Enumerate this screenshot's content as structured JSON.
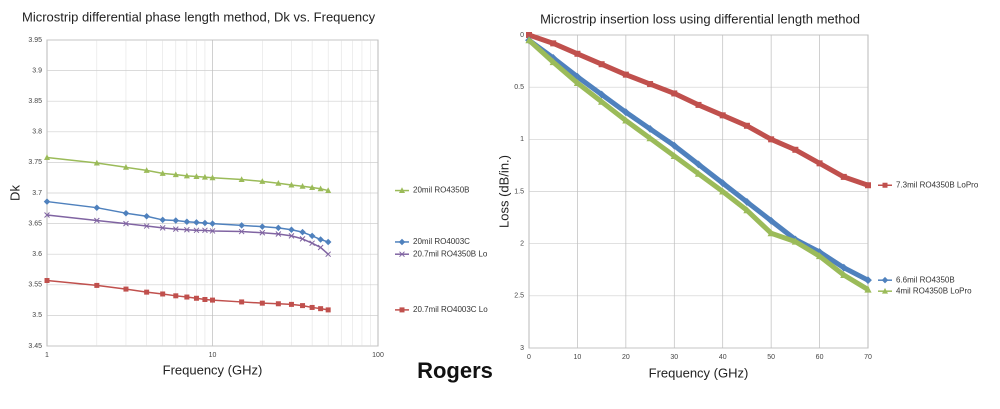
{
  "chart_data": [
    {
      "type": "line",
      "title": "Microstrip differential phase length method, Dk vs. Frequency",
      "x_label": "Frequency (GHz)",
      "y_label": "Dk",
      "x_log": true,
      "grid": true,
      "marker_size": 2.5,
      "line_width": 1.5,
      "x": [
        1,
        2,
        3,
        4,
        5,
        6,
        7,
        8,
        9,
        10,
        15,
        20,
        25,
        30,
        35,
        40,
        45,
        50
      ],
      "xlim": [
        1,
        100
      ],
      "xticks": [
        1,
        10,
        100
      ],
      "ylim": [
        3.45,
        3.95
      ],
      "yticks": [
        3.45,
        3.5,
        3.55,
        3.6,
        3.65,
        3.7,
        3.75,
        3.8,
        3.85,
        3.9,
        3.95
      ],
      "series": [
        {
          "name": "20mil RO4350B",
          "color": "#9bbb59",
          "marker": "triangle",
          "values": [
            3.758,
            3.749,
            3.742,
            3.737,
            3.732,
            3.73,
            3.728,
            3.727,
            3.726,
            3.725,
            3.722,
            3.719,
            3.716,
            3.713,
            3.711,
            3.709,
            3.707,
            3.704
          ]
        },
        {
          "name": "20mil RO4003C",
          "color": "#4f81bd",
          "marker": "diamond",
          "values": [
            3.686,
            3.676,
            3.667,
            3.662,
            3.656,
            3.655,
            3.653,
            3.652,
            3.651,
            3.65,
            3.647,
            3.645,
            3.643,
            3.64,
            3.636,
            3.63,
            3.624,
            3.62
          ]
        },
        {
          "name": "20.7mil RO4350B Lo",
          "color": "#8064a2",
          "marker": "cross",
          "values": [
            3.664,
            3.655,
            3.65,
            3.646,
            3.643,
            3.641,
            3.64,
            3.639,
            3.639,
            3.638,
            3.637,
            3.635,
            3.633,
            3.63,
            3.625,
            3.618,
            3.611,
            3.6
          ]
        },
        {
          "name": "20.7mil RO4003C Lo",
          "color": "#c0504d",
          "marker": "square",
          "values": [
            3.557,
            3.549,
            3.543,
            3.538,
            3.535,
            3.532,
            3.53,
            3.528,
            3.526,
            3.525,
            3.522,
            3.52,
            3.519,
            3.518,
            3.516,
            3.513,
            3.511,
            3.509
          ]
        }
      ]
    },
    {
      "type": "line",
      "title": "Microstrip insertion loss using differential length method",
      "x_label": "Frequency (GHz)",
      "y_label": "Loss (dB/in.)",
      "y_inverted": true,
      "grid": true,
      "marker_size": 3,
      "line_width": 5,
      "x": [
        0,
        5,
        10,
        15,
        20,
        25,
        30,
        35,
        40,
        45,
        50,
        55,
        60,
        65,
        70
      ],
      "xlim": [
        0,
        70
      ],
      "xticks": [
        0,
        10,
        20,
        30,
        40,
        50,
        60,
        70
      ],
      "ylim": [
        0,
        3
      ],
      "yticks": [
        0,
        0.5,
        1,
        1.5,
        2,
        2.5,
        3
      ],
      "series": [
        {
          "name": "7.3mil RO4350B LoPro",
          "color": "#c0504d",
          "marker": "square",
          "values": [
            0,
            0.08,
            0.18,
            0.28,
            0.38,
            0.47,
            0.56,
            0.67,
            0.77,
            0.87,
            1.0,
            1.1,
            1.23,
            1.36,
            1.44
          ]
        },
        {
          "name": "6.6mil RO4350B",
          "color": "#4f81bd",
          "marker": "diamond",
          "values": [
            0.05,
            0.22,
            0.4,
            0.57,
            0.74,
            0.9,
            1.06,
            1.24,
            1.42,
            1.6,
            1.78,
            1.96,
            2.08,
            2.23,
            2.35
          ]
        },
        {
          "name": "4mil RO4350B LoPro",
          "color": "#9bbb59",
          "marker": "triangle",
          "values": [
            0.05,
            0.26,
            0.46,
            0.64,
            0.82,
            0.99,
            1.16,
            1.33,
            1.5,
            1.68,
            1.9,
            1.98,
            2.12,
            2.3,
            2.44
          ]
        }
      ]
    }
  ],
  "brand": "Rogers"
}
